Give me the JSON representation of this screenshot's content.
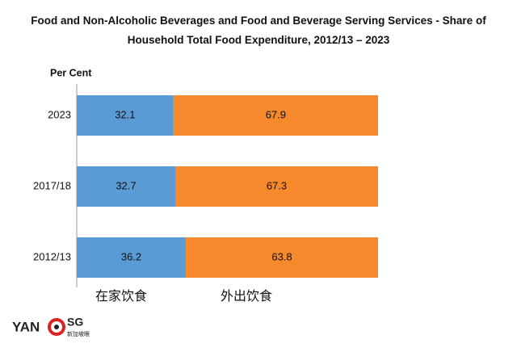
{
  "chart_data": {
    "type": "stacked-barh",
    "title": "Food and Non-Alcoholic Beverages and Food and Beverage Serving Services - Share of Household Total Food Expenditure, 2012/13 – 2023",
    "axis_label": "Per Cent",
    "categories": [
      "2023",
      "2017/18",
      "2012/13"
    ],
    "series": [
      {
        "name": "在家饮食",
        "color": "#5b9bd5",
        "values": [
          32.1,
          32.7,
          36.2
        ]
      },
      {
        "name": "外出饮食",
        "color": "#f5892c",
        "values": [
          67.9,
          67.3,
          63.8
        ]
      }
    ],
    "xlim": [
      0,
      100
    ]
  },
  "logo": {
    "left": "YAN",
    "right": "SG",
    "sub": "新加坡眼"
  }
}
